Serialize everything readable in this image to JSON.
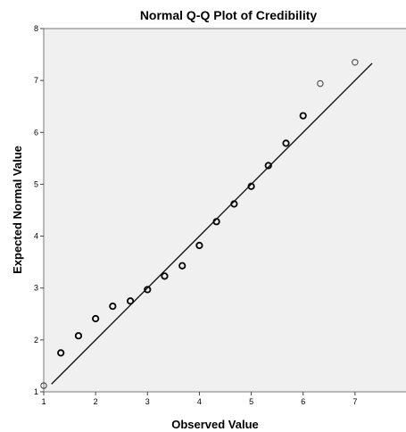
{
  "chart_data": {
    "type": "scatter",
    "title": "Normal Q-Q Plot of Credibility",
    "xlabel": "Observed Value",
    "ylabel": "Expected Normal Value",
    "xlim": [
      1,
      8
    ],
    "ylim": [
      1,
      8
    ],
    "x_ticks": [
      "1",
      "2",
      "3",
      "4",
      "5",
      "6",
      "7"
    ],
    "y_ticks": [
      "1",
      "2",
      "3",
      "4",
      "5",
      "6",
      "7",
      "8"
    ],
    "grid": false,
    "plot_background": "#f0f0f0",
    "point_color": "#000000",
    "line_color": "#000000",
    "points": [
      {
        "x": 1.0,
        "y": 1.12,
        "n": 1
      },
      {
        "x": 1.33,
        "y": 1.75,
        "n": 2
      },
      {
        "x": 1.67,
        "y": 2.08,
        "n": 2
      },
      {
        "x": 2.0,
        "y": 2.41,
        "n": 3
      },
      {
        "x": 2.33,
        "y": 2.65,
        "n": 2
      },
      {
        "x": 2.67,
        "y": 2.75,
        "n": 2
      },
      {
        "x": 3.0,
        "y": 2.97,
        "n": 3
      },
      {
        "x": 3.33,
        "y": 3.23,
        "n": 3
      },
      {
        "x": 3.67,
        "y": 3.43,
        "n": 3
      },
      {
        "x": 4.0,
        "y": 3.82,
        "n": 4
      },
      {
        "x": 4.33,
        "y": 4.28,
        "n": 3
      },
      {
        "x": 4.67,
        "y": 4.62,
        "n": 3
      },
      {
        "x": 5.0,
        "y": 4.96,
        "n": 3
      },
      {
        "x": 5.33,
        "y": 5.36,
        "n": 3
      },
      {
        "x": 5.67,
        "y": 5.79,
        "n": 3
      },
      {
        "x": 6.0,
        "y": 6.32,
        "n": 3
      },
      {
        "x": 6.33,
        "y": 6.94,
        "n": 1
      },
      {
        "x": 7.0,
        "y": 7.35,
        "n": 1
      }
    ],
    "reference_line": {
      "x": [
        1.15,
        7.33
      ],
      "y": [
        1.15,
        7.33
      ]
    }
  }
}
